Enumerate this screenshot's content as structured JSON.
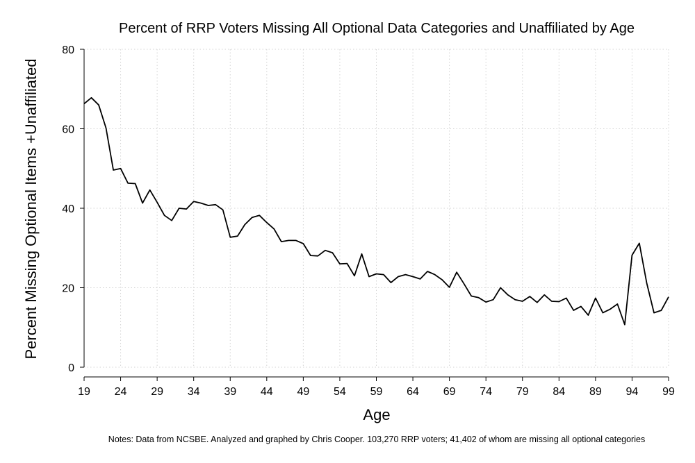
{
  "chart_data": {
    "type": "line",
    "title": "Percent of RRP Voters Missing All Optional Data Categories and Unaffiliated by Age",
    "xlabel": "Age",
    "ylabel": "Percent Missing Optional Items +Unaffiliated",
    "xlim": [
      19,
      99
    ],
    "ylim": [
      0,
      80
    ],
    "xticks": [
      "19",
      "24",
      "29",
      "34",
      "39",
      "44",
      "49",
      "54",
      "59",
      "64",
      "69",
      "74",
      "79",
      "84",
      "89",
      "94",
      "99"
    ],
    "yticks": [
      "0",
      "20",
      "40",
      "60",
      "80"
    ],
    "grid": true,
    "series": [
      {
        "name": "Percent Missing Optional Items +Unaffiliated",
        "x": [
          19,
          20,
          21,
          22,
          23,
          24,
          25,
          26,
          27,
          28,
          29,
          30,
          31,
          32,
          33,
          34,
          35,
          36,
          37,
          38,
          39,
          40,
          41,
          42,
          43,
          44,
          45,
          46,
          47,
          48,
          49,
          50,
          51,
          52,
          53,
          54,
          55,
          56,
          57,
          58,
          59,
          60,
          61,
          62,
          63,
          64,
          65,
          66,
          67,
          68,
          69,
          70,
          71,
          72,
          73,
          74,
          75,
          76,
          77,
          78,
          79,
          80,
          81,
          82,
          83,
          84,
          85,
          86,
          87,
          88,
          89,
          90,
          91,
          92,
          93,
          94,
          95,
          96,
          97,
          98,
          99
        ],
        "values": [
          66.3,
          67.8,
          66,
          60.2,
          49.6,
          50,
          46.3,
          46.2,
          41.3,
          44.6,
          41.5,
          38.2,
          36.9,
          40,
          39.8,
          41.7,
          41.3,
          40.7,
          40.9,
          39.6,
          32.7,
          33,
          35.9,
          37.7,
          38.2,
          36.4,
          34.8,
          31.6,
          31.9,
          31.9,
          31.1,
          28.1,
          28,
          29.4,
          28.8,
          26,
          26.1,
          23,
          28.5,
          22.8,
          23.5,
          23.3,
          21.3,
          22.8,
          23.3,
          22.8,
          22.2,
          24.1,
          23.3,
          22,
          20.1,
          23.9,
          21,
          17.9,
          17.5,
          16.4,
          17,
          20,
          18.2,
          17,
          16.6,
          17.8,
          16.3,
          18.2,
          16.6,
          16.5,
          17.4,
          14.3,
          15.3,
          13.1,
          17.4,
          13.7,
          14.6,
          15.9,
          10.7,
          28.2,
          31.2,
          21.2,
          13.7,
          14.3,
          17.7
        ]
      }
    ]
  },
  "notes": "Notes: Data from NCSBE. Analyzed and graphed by Chris Cooper. 103,270 RRP voters; 41,402 of whom are missing all optional categories"
}
